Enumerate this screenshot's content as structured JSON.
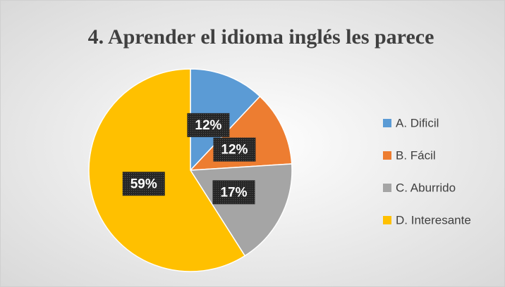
{
  "chart_data": {
    "type": "pie",
    "title": "4. Aprender el idioma inglés les parece",
    "categories": [
      "A. Dificil",
      "B. Fácil",
      "C. Aburrido",
      "D. Interesante"
    ],
    "values": [
      12,
      12,
      17,
      59
    ],
    "value_labels": [
      "12%",
      "12%",
      "17%",
      "59%"
    ],
    "colors": [
      "#5b9bd5",
      "#ed7d31",
      "#a5a5a5",
      "#ffc000"
    ],
    "legend": "right"
  }
}
